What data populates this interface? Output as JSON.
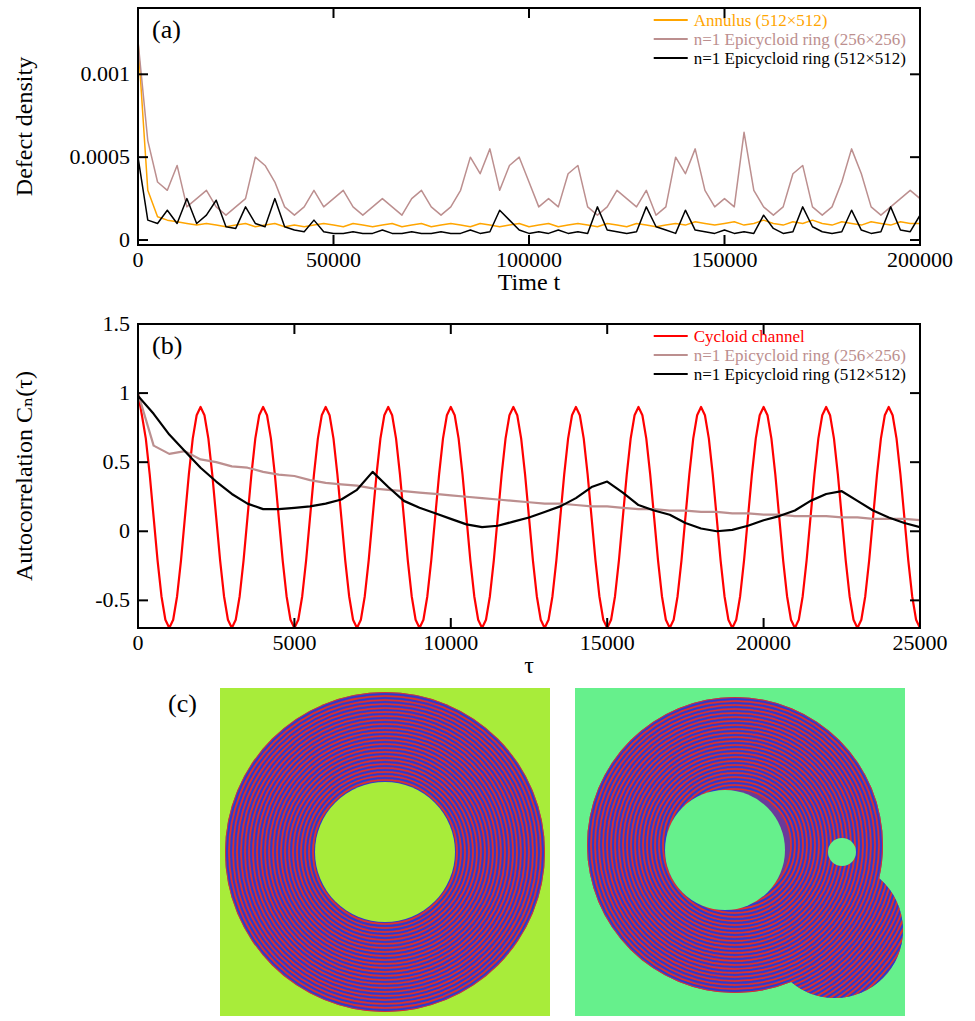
{
  "chart_data": [
    {
      "type": "line",
      "title": "(a)",
      "x_label": "Time t",
      "y_label": "Defect density",
      "xlim": [
        0,
        200000
      ],
      "ylim": [
        -3e-05,
        0.0014
      ],
      "xticks": [
        0,
        50000,
        100000,
        150000,
        200000
      ],
      "yticks": [
        0,
        0.0005,
        0.001
      ],
      "legend": "top-right",
      "x": [
        0,
        2500,
        5000,
        7500,
        10000,
        12500,
        15000,
        17500,
        20000,
        22500,
        25000,
        27500,
        30000,
        32500,
        35000,
        37500,
        40000,
        42500,
        45000,
        47500,
        50000,
        52500,
        55000,
        57500,
        60000,
        62500,
        65000,
        67500,
        70000,
        72500,
        75000,
        77500,
        80000,
        82500,
        85000,
        87500,
        90000,
        92500,
        95000,
        97500,
        100000,
        102500,
        105000,
        107500,
        110000,
        112500,
        115000,
        117500,
        120000,
        122500,
        125000,
        127500,
        130000,
        132500,
        135000,
        137500,
        140000,
        142500,
        145000,
        147500,
        150000,
        152500,
        155000,
        157500,
        160000,
        162500,
        165000,
        167500,
        170000,
        172500,
        175000,
        177500,
        180000,
        182500,
        185000,
        187500,
        190000,
        192500,
        195000,
        197500,
        200000
      ],
      "series": [
        {
          "name": "Annulus (512×512)",
          "color": "#ffa500",
          "values": [
            0.0012,
            0.0003,
            0.00014,
            0.00012,
            0.00011,
            0.0001,
            9e-05,
            0.0001,
            9e-05,
            8e-05,
            9e-05,
            0.0001,
            8e-05,
            9e-05,
            0.0001,
            8e-05,
            9e-05,
            8e-05,
            9e-05,
            0.0001,
            9e-05,
            8e-05,
            0.0001,
            9e-05,
            8e-05,
            9e-05,
            0.0001,
            8e-05,
            9e-05,
            0.0001,
            8e-05,
            9e-05,
            0.0001,
            9e-05,
            8e-05,
            0.0001,
            9e-05,
            8e-05,
            9e-05,
            0.0001,
            8e-05,
            9e-05,
            0.0001,
            8e-05,
            9e-05,
            0.0001,
            9e-05,
            8e-05,
            0.0001,
            9e-05,
            8e-05,
            0.0001,
            9e-05,
            8e-05,
            9e-05,
            0.0001,
            9e-05,
            0.00011,
            0.0001,
            9e-05,
            0.0001,
            0.00011,
            9e-05,
            0.0001,
            0.00012,
            0.0001,
            9e-05,
            0.00011,
            0.0001,
            0.00012,
            0.0001,
            9e-05,
            0.00011,
            0.0001,
            9e-05,
            0.00011,
            0.0001,
            9e-05,
            0.00011,
            0.0001,
            0.0001
          ]
        },
        {
          "name": "n=1 Epicycloid ring (256×256)",
          "color": "#bc8f8f",
          "values": [
            0.0012,
            0.0006,
            0.00035,
            0.0003,
            0.00045,
            0.0002,
            0.00025,
            0.0003,
            0.0002,
            0.00015,
            0.0002,
            0.00025,
            0.0005,
            0.00045,
            0.00035,
            0.0002,
            0.00015,
            0.0002,
            0.0003,
            0.0002,
            0.00025,
            0.0003,
            0.0002,
            0.00015,
            0.0002,
            0.00025,
            0.0002,
            0.00015,
            0.00025,
            0.0003,
            0.0002,
            0.00015,
            0.0002,
            0.0003,
            0.0005,
            0.0004,
            0.00055,
            0.0003,
            0.00045,
            0.0005,
            0.00035,
            0.0002,
            0.00025,
            0.0002,
            0.0004,
            0.00045,
            0.0002,
            0.00015,
            0.0002,
            0.0003,
            0.00025,
            0.0002,
            0.0003,
            0.00015,
            0.0002,
            0.0005,
            0.0004,
            0.00055,
            0.0003,
            0.0002,
            0.00025,
            0.0002,
            0.00065,
            0.0003,
            0.0002,
            0.00015,
            0.0002,
            0.0004,
            0.00045,
            0.0002,
            0.00015,
            0.0002,
            0.00035,
            0.00055,
            0.0004,
            0.0002,
            0.00015,
            0.0002,
            0.00025,
            0.0003,
            0.00025
          ]
        },
        {
          "name": "n=1 Epicycloid ring (512×512)",
          "color": "#000000",
          "values": [
            0.0005,
            0.00012,
            0.0001,
            0.00018,
            0.0001,
            0.00025,
            0.0001,
            0.00015,
            0.00024,
            8e-05,
            7e-05,
            0.0002,
            0.0001,
            8e-05,
            0.00025,
            8e-05,
            6e-05,
            5e-05,
            0.00012,
            5e-05,
            4e-05,
            4e-05,
            5e-05,
            4e-05,
            4e-05,
            6e-05,
            4e-05,
            4e-05,
            5e-05,
            4e-05,
            4e-05,
            5e-05,
            4e-05,
            4e-05,
            6e-05,
            4e-05,
            5e-05,
            0.00018,
            0.00012,
            6e-05,
            4e-05,
            5e-05,
            4e-05,
            6e-05,
            4e-05,
            5e-05,
            4e-05,
            0.0002,
            6e-05,
            5e-05,
            4e-05,
            5e-05,
            0.0002,
            8e-05,
            6e-05,
            4e-05,
            0.00018,
            6e-05,
            5e-05,
            4e-05,
            6e-05,
            4e-05,
            5e-05,
            4e-05,
            0.00015,
            7e-05,
            4e-05,
            5e-05,
            0.0002,
            8e-05,
            5e-05,
            4e-05,
            5e-05,
            0.00018,
            6e-05,
            4e-05,
            5e-05,
            0.0002,
            6e-05,
            5e-05,
            0.00015
          ]
        }
      ]
    },
    {
      "type": "line",
      "title": "(b)",
      "x_label": "τ",
      "y_label": "Autocorrelation Cₙ(τ)",
      "xlim": [
        0,
        25000
      ],
      "ylim": [
        -0.7,
        1.5
      ],
      "xticks": [
        0,
        5000,
        10000,
        15000,
        20000,
        25000
      ],
      "yticks": [
        -0.5,
        0,
        0.5,
        1,
        1.5
      ],
      "legend": "top-right",
      "series": [
        {
          "name": "Cycloid channel",
          "color": "#ff0000",
          "x": [
            0,
            125,
            250,
            375,
            500,
            625,
            750,
            875,
            1000,
            1125,
            1250,
            1375,
            1500,
            1625,
            1750,
            1875,
            2000,
            2125,
            2250,
            2375,
            2500,
            2625,
            2750,
            2875,
            3000,
            3125,
            3250,
            3375,
            3500,
            3625,
            3750,
            3875,
            4000,
            4125,
            4250,
            4375,
            4500,
            4625,
            4750,
            4875,
            5000,
            5125,
            5250,
            5375,
            5500,
            5625,
            5750,
            5875,
            6000,
            6125,
            6250,
            6375,
            6500,
            6625,
            6750,
            6875,
            7000,
            7125,
            7250,
            7375,
            7500,
            7625,
            7750,
            7875,
            8000,
            8125,
            8250,
            8375,
            8500,
            8625,
            8750,
            8875,
            9000,
            9125,
            9250,
            9375,
            9500,
            9625,
            9750,
            9875,
            10000,
            10125,
            10250,
            10375,
            10500,
            10625,
            10750,
            10875,
            11000,
            11125,
            11250,
            11375,
            11500,
            11625,
            11750,
            11875,
            12000,
            12125,
            12250,
            12375,
            12500,
            12625,
            12750,
            12875,
            13000,
            13125,
            13250,
            13375,
            13500,
            13625,
            13750,
            13875,
            14000,
            14125,
            14250,
            14375,
            14500,
            14625,
            14750,
            14875,
            15000,
            15125,
            15250,
            15375,
            15500,
            15625,
            15750,
            15875,
            16000,
            16125,
            16250,
            16375,
            16500,
            16625,
            16750,
            16875,
            17000,
            17125,
            17250,
            17375,
            17500,
            17625,
            17750,
            17875,
            18000,
            18125,
            18250,
            18375,
            18500,
            18625,
            18750,
            18875,
            19000,
            19125,
            19250,
            19375,
            19500,
            19625,
            19750,
            19875,
            20000,
            20125,
            20250,
            20375,
            20500,
            20625,
            20750,
            20875,
            21000,
            21125,
            21250,
            21375,
            21500,
            21625,
            21750,
            21875,
            22000,
            22125,
            22250,
            22375,
            22500,
            22625,
            22750,
            22875,
            23000,
            23125,
            23250,
            23375,
            23500,
            23625,
            23750,
            23875,
            24000,
            24125,
            24250,
            24375,
            24500,
            24625,
            24750,
            24875,
            25000
          ],
          "values": [
            1,
            0.84,
            0.67,
            0.41,
            0.1,
            -0.21,
            -0.47,
            -0.64,
            -0.7,
            -0.64,
            -0.47,
            -0.21,
            0.1,
            0.41,
            0.67,
            0.84,
            0.9,
            0.84,
            0.67,
            0.41,
            0.1,
            -0.21,
            -0.47,
            -0.64,
            -0.7,
            -0.64,
            -0.47,
            -0.21,
            0.1,
            0.41,
            0.67,
            0.84,
            0.9,
            0.84,
            0.67,
            0.41,
            0.1,
            -0.21,
            -0.47,
            -0.64,
            -0.7,
            -0.64,
            -0.47,
            -0.21,
            0.1,
            0.41,
            0.67,
            0.84,
            0.9,
            0.84,
            0.67,
            0.41,
            0.1,
            -0.21,
            -0.47,
            -0.64,
            -0.7,
            -0.64,
            -0.47,
            -0.21,
            0.1,
            0.41,
            0.67,
            0.84,
            0.9,
            0.84,
            0.67,
            0.41,
            0.1,
            -0.21,
            -0.47,
            -0.64,
            -0.7,
            -0.64,
            -0.47,
            -0.21,
            0.1,
            0.41,
            0.67,
            0.84,
            0.9,
            0.84,
            0.67,
            0.41,
            0.1,
            -0.21,
            -0.47,
            -0.64,
            -0.7,
            -0.64,
            -0.47,
            -0.21,
            0.1,
            0.41,
            0.67,
            0.84,
            0.9,
            0.84,
            0.67,
            0.41,
            0.1,
            -0.21,
            -0.47,
            -0.64,
            -0.7,
            -0.64,
            -0.47,
            -0.21,
            0.1,
            0.41,
            0.67,
            0.84,
            0.9,
            0.84,
            0.67,
            0.41,
            0.1,
            -0.21,
            -0.47,
            -0.64,
            -0.7,
            -0.64,
            -0.47,
            -0.21,
            0.1,
            0.41,
            0.67,
            0.84,
            0.9,
            0.84,
            0.67,
            0.41,
            0.1,
            -0.21,
            -0.47,
            -0.64,
            -0.7,
            -0.64,
            -0.47,
            -0.21,
            0.1,
            0.41,
            0.67,
            0.84,
            0.9,
            0.84,
            0.67,
            0.41,
            0.1,
            -0.21,
            -0.47,
            -0.64,
            -0.7,
            -0.64,
            -0.47,
            -0.21,
            0.1,
            0.41,
            0.67,
            0.84,
            0.9,
            0.84,
            0.67,
            0.41,
            0.1,
            -0.21,
            -0.47,
            -0.64,
            -0.7,
            -0.64,
            -0.47,
            -0.21,
            0.1,
            0.41,
            0.67,
            0.84,
            0.9,
            0.84,
            0.67,
            0.41,
            0.1,
            -0.21,
            -0.47,
            -0.64,
            -0.7,
            -0.64,
            -0.47,
            -0.21,
            0.1,
            0.41,
            0.67,
            0.84,
            0.9,
            0.84,
            0.67,
            0.41,
            0.1,
            -0.21,
            -0.47,
            -0.64,
            -0.7
          ]
        },
        {
          "name": "n=1 Epicycloid ring (256×256)",
          "color": "#bc8f8f",
          "x": [
            0,
            500,
            1000,
            1500,
            2000,
            2500,
            3000,
            3500,
            4000,
            4500,
            5000,
            5500,
            6000,
            6500,
            7000,
            7500,
            8000,
            8500,
            9000,
            9500,
            10000,
            10500,
            11000,
            11500,
            12000,
            12500,
            13000,
            13500,
            14000,
            14500,
            15000,
            15500,
            16000,
            16500,
            17000,
            17500,
            18000,
            18500,
            19000,
            19500,
            20000,
            20500,
            21000,
            21500,
            22000,
            22500,
            23000,
            23500,
            24000,
            24500,
            25000
          ],
          "values": [
            1,
            0.62,
            0.56,
            0.58,
            0.52,
            0.5,
            0.47,
            0.46,
            0.43,
            0.41,
            0.4,
            0.37,
            0.35,
            0.34,
            0.33,
            0.31,
            0.3,
            0.29,
            0.28,
            0.27,
            0.26,
            0.25,
            0.24,
            0.23,
            0.22,
            0.21,
            0.2,
            0.2,
            0.19,
            0.18,
            0.18,
            0.17,
            0.16,
            0.16,
            0.15,
            0.15,
            0.14,
            0.14,
            0.13,
            0.13,
            0.12,
            0.12,
            0.11,
            0.11,
            0.11,
            0.1,
            0.1,
            0.09,
            0.09,
            0.09,
            0.08
          ]
        },
        {
          "name": "n=1 Epicycloid ring (512×512)",
          "color": "#000000",
          "x": [
            0,
            500,
            1000,
            1500,
            2000,
            2500,
            3000,
            3500,
            4000,
            4500,
            5000,
            5500,
            6000,
            6500,
            7000,
            7500,
            8000,
            8500,
            9000,
            9500,
            10000,
            10500,
            11000,
            11500,
            12000,
            12500,
            13000,
            13500,
            14000,
            14500,
            15000,
            15500,
            16000,
            16500,
            17000,
            17500,
            18000,
            18500,
            19000,
            19500,
            20000,
            20500,
            21000,
            21500,
            22000,
            22500,
            23000,
            23500,
            24000,
            24500,
            25000
          ],
          "values": [
            0.98,
            0.85,
            0.7,
            0.58,
            0.46,
            0.36,
            0.27,
            0.2,
            0.16,
            0.16,
            0.17,
            0.18,
            0.2,
            0.23,
            0.3,
            0.43,
            0.32,
            0.22,
            0.17,
            0.13,
            0.09,
            0.05,
            0.03,
            0.04,
            0.07,
            0.1,
            0.14,
            0.18,
            0.24,
            0.32,
            0.36,
            0.28,
            0.19,
            0.15,
            0.12,
            0.06,
            0.02,
            0,
            0.01,
            0.04,
            0.08,
            0.11,
            0.15,
            0.22,
            0.27,
            0.29,
            0.22,
            0.15,
            0.1,
            0.06,
            0.03
          ]
        }
      ]
    }
  ],
  "images": {
    "label": "(c)"
  }
}
